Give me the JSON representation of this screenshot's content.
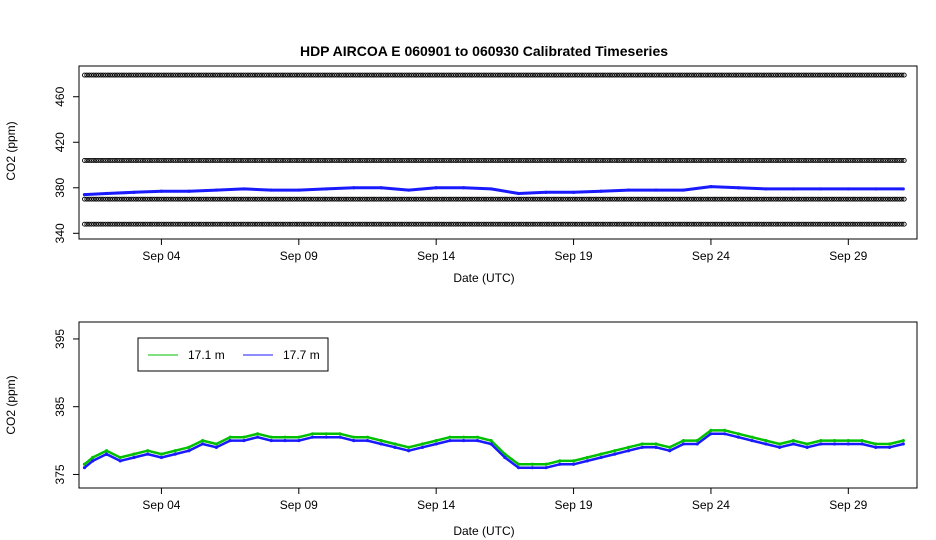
{
  "figure": {
    "title": "HDP   AIRCOA  E   060901  to  060930   Calibrated Timeseries"
  },
  "chart_data": [
    {
      "type": "scatter",
      "title": "HDP   AIRCOA  E   060901  to  060930   Calibrated Timeseries",
      "xlabel": "Date (UTC)",
      "ylabel": "CO2 (ppm)",
      "x_ticks": [
        "Sep 04",
        "Sep 09",
        "Sep 14",
        "Sep 19",
        "Sep 24",
        "Sep 29"
      ],
      "x_tick_days": [
        4,
        9,
        14,
        19,
        24,
        29
      ],
      "y_ticks": [
        "340",
        "380",
        "420",
        "460"
      ],
      "y_tick_values": [
        340,
        380,
        420,
        460
      ],
      "xlim": [
        1,
        31.5
      ],
      "ylim": [
        335,
        487
      ],
      "grid": false,
      "series": [
        {
          "color": "#000000",
          "marker": "open-circle",
          "reference_levels": [
            479,
            404,
            370,
            348
          ]
        },
        {
          "color": "#1a1aff",
          "x": [
            1.2,
            2,
            3,
            4,
            5,
            6,
            7,
            8,
            9,
            10,
            11,
            12,
            13,
            14,
            15,
            16,
            17,
            18,
            19,
            20,
            21,
            22,
            23,
            24,
            25,
            26,
            27,
            28,
            29,
            30,
            31
          ],
          "y": [
            374,
            375,
            376,
            377,
            377,
            378,
            379,
            378,
            378,
            379,
            380,
            380,
            378,
            380,
            380,
            379,
            375,
            376,
            376,
            377,
            378,
            378,
            378,
            381,
            380,
            379,
            379,
            379,
            379,
            379,
            379
          ]
        }
      ]
    },
    {
      "type": "line",
      "xlabel": "Date (UTC)",
      "ylabel": "CO2 (ppm)",
      "x_ticks": [
        "Sep 04",
        "Sep 09",
        "Sep 14",
        "Sep 19",
        "Sep 24",
        "Sep 29"
      ],
      "x_tick_days": [
        4,
        9,
        14,
        19,
        24,
        29
      ],
      "y_ticks": [
        "375",
        "385",
        "395"
      ],
      "y_tick_values": [
        375,
        385,
        395
      ],
      "xlim": [
        1,
        31.5
      ],
      "ylim": [
        373,
        397.5
      ],
      "grid": false,
      "legend_position": "top-left",
      "series": [
        {
          "name": "17.1 m",
          "color": "#00c000",
          "x": [
            1.2,
            1.5,
            2,
            2.5,
            3,
            3.5,
            4,
            4.5,
            5,
            5.5,
            6,
            6.5,
            7,
            7.5,
            8,
            8.5,
            9,
            9.5,
            10,
            10.5,
            11,
            11.5,
            12,
            12.5,
            13,
            13.5,
            14,
            14.5,
            15,
            15.5,
            16,
            16.5,
            17,
            17.5,
            18,
            18.5,
            19,
            19.5,
            20,
            20.5,
            21,
            21.5,
            22,
            22.5,
            23,
            23.5,
            24,
            24.5,
            25,
            25.5,
            26,
            26.5,
            27,
            27.5,
            28,
            28.5,
            29,
            29.5,
            30,
            30.5,
            31
          ],
          "y": [
            376.5,
            377.5,
            378.5,
            377.5,
            378,
            378.5,
            378,
            378.5,
            379,
            380,
            379.5,
            380.5,
            380.5,
            381,
            380.5,
            380.5,
            380.5,
            381,
            381,
            381,
            380.5,
            380.5,
            380,
            379.5,
            379,
            379.5,
            380,
            380.5,
            380.5,
            380.5,
            380,
            378,
            376.5,
            376.5,
            376.5,
            377,
            377,
            377.5,
            378,
            378.5,
            379,
            379.5,
            379.5,
            379,
            380,
            380,
            381.5,
            381.5,
            381,
            380.5,
            380,
            379.5,
            380,
            379.5,
            380,
            380,
            380,
            380,
            379.5,
            379.5,
            380
          ]
        },
        {
          "name": "17.7 m",
          "color": "#1a1aff",
          "x": [
            1.2,
            1.5,
            2,
            2.5,
            3,
            3.5,
            4,
            4.5,
            5,
            5.5,
            6,
            6.5,
            7,
            7.5,
            8,
            8.5,
            9,
            9.5,
            10,
            10.5,
            11,
            11.5,
            12,
            12.5,
            13,
            13.5,
            14,
            14.5,
            15,
            15.5,
            16,
            16.5,
            17,
            17.5,
            18,
            18.5,
            19,
            19.5,
            20,
            20.5,
            21,
            21.5,
            22,
            22.5,
            23,
            23.5,
            24,
            24.5,
            25,
            25.5,
            26,
            26.5,
            27,
            27.5,
            28,
            28.5,
            29,
            29.5,
            30,
            30.5,
            31
          ],
          "y": [
            376,
            377,
            378,
            377,
            377.5,
            378,
            377.5,
            378,
            378.5,
            379.5,
            379,
            380,
            380,
            380.5,
            380,
            380,
            380,
            380.5,
            380.5,
            380.5,
            380,
            380,
            379.5,
            379,
            378.5,
            379,
            379.5,
            380,
            380,
            380,
            379.5,
            377.5,
            376,
            376,
            376,
            376.5,
            376.5,
            377,
            377.5,
            378,
            378.5,
            379,
            379,
            378.5,
            379.5,
            379.5,
            381,
            381,
            380.5,
            380,
            379.5,
            379,
            379.5,
            379,
            379.5,
            379.5,
            379.5,
            379.5,
            379,
            379,
            379.5
          ]
        }
      ]
    }
  ]
}
